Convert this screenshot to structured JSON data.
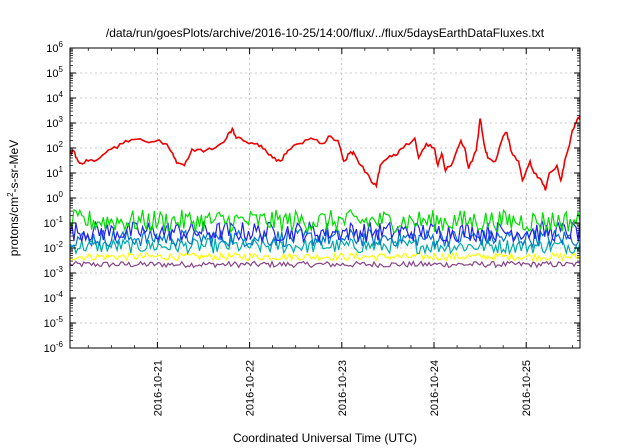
{
  "chart_data": {
    "type": "line",
    "title": "/data/run/goesPlots/archive/2016-10-25/14:00/flux/../flux/5daysEarthDataFluxes.txt",
    "xlabel": "Coordinated Universal Time (UTC)",
    "ylabel": {
      "main": "protons/cm",
      "sup": "2",
      "rest": "-s-sr-MeV"
    },
    "x_range": [
      "2016-10-20T01:15",
      "2016-10-25T14:00"
    ],
    "y_scale": "log",
    "ylim": [
      1e-06,
      1000000
    ],
    "grid": true,
    "x_ticks": [
      {
        "label": "2016-10-21",
        "x": "2016-10-21T00:00"
      },
      {
        "label": "2016-10-22",
        "x": "2016-10-22T00:00"
      },
      {
        "label": "2016-10-23",
        "x": "2016-10-23T00:00"
      },
      {
        "label": "2016-10-24",
        "x": "2016-10-24T00:00"
      },
      {
        "label": "2016-10-25",
        "x": "2016-10-25T00:00"
      }
    ],
    "y_ticks": [
      {
        "base": "10",
        "exp": "6",
        "value": 1000000
      },
      {
        "base": "10",
        "exp": "5",
        "value": 100000
      },
      {
        "base": "10",
        "exp": "4",
        "value": 10000
      },
      {
        "base": "10",
        "exp": "3",
        "value": 1000
      },
      {
        "base": "10",
        "exp": "2",
        "value": 100
      },
      {
        "base": "10",
        "exp": "1",
        "value": 10
      },
      {
        "base": "10",
        "exp": "0",
        "value": 1
      },
      {
        "base": "10",
        "exp": "-1",
        "value": 0.1
      },
      {
        "base": "10",
        "exp": "-2",
        "value": 0.01
      },
      {
        "base": "10",
        "exp": "-3",
        "value": 0.001
      },
      {
        "base": "10",
        "exp": "-4",
        "value": 0.0001
      },
      {
        "base": "10",
        "exp": "-5",
        "value": 1e-05
      },
      {
        "base": "10",
        "exp": "-6",
        "value": 1e-06
      }
    ],
    "series": [
      {
        "color": "#ee0000",
        "points": [
          [
            "2016-10-20T01:15",
            60
          ],
          [
            "2016-10-20T02:00",
            80
          ],
          [
            "2016-10-20T03:00",
            40
          ],
          [
            "2016-10-20T04:00",
            25
          ],
          [
            "2016-10-20T06:00",
            30
          ],
          [
            "2016-10-20T09:00",
            40
          ],
          [
            "2016-10-20T12:00",
            90
          ],
          [
            "2016-10-20T15:00",
            150
          ],
          [
            "2016-10-20T18:00",
            220
          ],
          [
            "2016-10-20T21:00",
            180
          ],
          [
            "2016-10-21T00:00",
            200
          ],
          [
            "2016-10-21T02:00",
            150
          ],
          [
            "2016-10-21T04:00",
            60
          ],
          [
            "2016-10-21T05:00",
            25
          ],
          [
            "2016-10-21T07:00",
            20
          ],
          [
            "2016-10-21T09:00",
            90
          ],
          [
            "2016-10-21T12:00",
            70
          ],
          [
            "2016-10-21T15:00",
            100
          ],
          [
            "2016-10-21T18:00",
            250
          ],
          [
            "2016-10-21T19:30",
            600
          ],
          [
            "2016-10-21T20:30",
            250
          ],
          [
            "2016-10-21T23:00",
            180
          ],
          [
            "2016-10-22T02:00",
            150
          ],
          [
            "2016-10-22T04:00",
            90
          ],
          [
            "2016-10-22T06:00",
            40
          ],
          [
            "2016-10-22T08:00",
            30
          ],
          [
            "2016-10-22T10:00",
            80
          ],
          [
            "2016-10-22T13:00",
            150
          ],
          [
            "2016-10-22T16:00",
            250
          ],
          [
            "2016-10-22T19:00",
            150
          ],
          [
            "2016-10-22T21:00",
            300
          ],
          [
            "2016-10-22T23:00",
            200
          ],
          [
            "2016-10-23T00:30",
            30
          ],
          [
            "2016-10-23T02:00",
            60
          ],
          [
            "2016-10-23T03:00",
            70
          ],
          [
            "2016-10-23T05:00",
            20
          ],
          [
            "2016-10-23T07:00",
            8
          ],
          [
            "2016-10-23T08:00",
            4
          ],
          [
            "2016-10-23T09:00",
            3
          ],
          [
            "2016-10-23T10:00",
            20
          ],
          [
            "2016-10-23T12:00",
            40
          ],
          [
            "2016-10-23T14:00",
            50
          ],
          [
            "2016-10-23T16:00",
            100
          ],
          [
            "2016-10-23T19:00",
            250
          ],
          [
            "2016-10-23T20:00",
            40
          ],
          [
            "2016-10-23T22:00",
            150
          ],
          [
            "2016-10-24T00:00",
            100
          ],
          [
            "2016-10-24T01:00",
            20
          ],
          [
            "2016-10-24T02:00",
            60
          ],
          [
            "2016-10-24T03:00",
            12
          ],
          [
            "2016-10-24T05:00",
            30
          ],
          [
            "2016-10-24T07:00",
            200
          ],
          [
            "2016-10-24T08:00",
            100
          ],
          [
            "2016-10-24T09:00",
            15
          ],
          [
            "2016-10-24T11:00",
            80
          ],
          [
            "2016-10-24T12:00",
            1500
          ],
          [
            "2016-10-24T13:00",
            150
          ],
          [
            "2016-10-24T14:00",
            40
          ],
          [
            "2016-10-24T16:00",
            30
          ],
          [
            "2016-10-24T18:00",
            300
          ],
          [
            "2016-10-24T19:00",
            400
          ],
          [
            "2016-10-24T20:00",
            80
          ],
          [
            "2016-10-24T22:00",
            30
          ],
          [
            "2016-10-24T23:00",
            5
          ],
          [
            "2016-10-25T01:00",
            30
          ],
          [
            "2016-10-25T02:00",
            10
          ],
          [
            "2016-10-25T04:00",
            5
          ],
          [
            "2016-10-25T05:00",
            2
          ],
          [
            "2016-10-25T06:00",
            10
          ],
          [
            "2016-10-25T08:00",
            20
          ],
          [
            "2016-10-25T09:00",
            5
          ],
          [
            "2016-10-25T10:00",
            30
          ],
          [
            "2016-10-25T11:00",
            100
          ],
          [
            "2016-10-25T12:00",
            500
          ],
          [
            "2016-10-25T13:00",
            1000
          ],
          [
            "2016-10-25T14:00",
            2000
          ]
        ]
      },
      {
        "color": "#00dd00",
        "level": 0.12,
        "spread": 0.45
      },
      {
        "color": "#2222ee",
        "level": 0.045,
        "spread": 0.4
      },
      {
        "color": "#0077cc",
        "level": 0.025,
        "spread": 0.35
      },
      {
        "color": "#00aaaa",
        "level": 0.012,
        "spread": 0.3
      },
      {
        "color": "#ffff00",
        "level": 0.0045,
        "spread": 0.15
      },
      {
        "color": "#884488",
        "level": 0.0022,
        "spread": 0.12
      }
    ]
  }
}
